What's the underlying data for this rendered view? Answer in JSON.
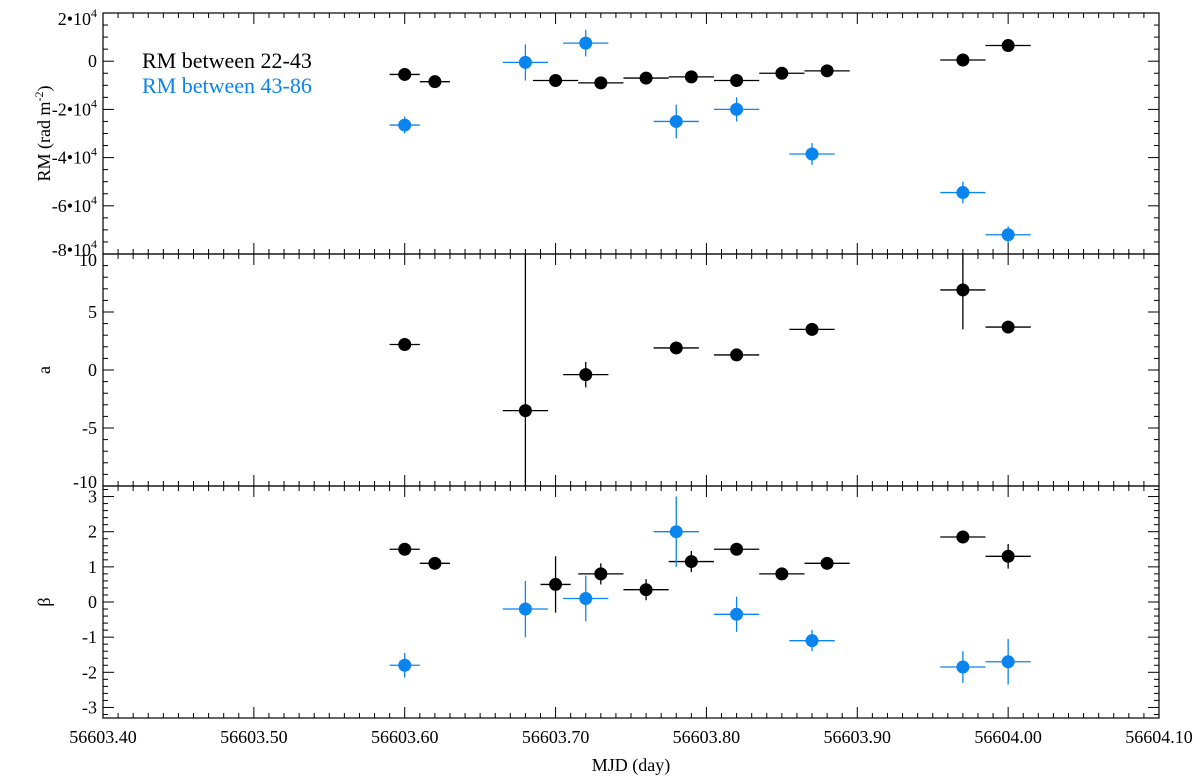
{
  "chart_data": {
    "type": "scatter",
    "layout": "three vertically stacked panels sharing the x axis",
    "xlabel": "MJD (day)",
    "xlim": [
      56603.4,
      56604.1
    ],
    "xticks": [
      "56603.40",
      "56603.50",
      "56603.60",
      "56603.70",
      "56603.80",
      "56603.90",
      "56604.00",
      "56604.10"
    ],
    "legend": {
      "position": "top-left",
      "entries": [
        {
          "label": "RM between 22-43",
          "color": "#000000"
        },
        {
          "label": "RM between 43-86",
          "color": "#0a84ee"
        }
      ]
    },
    "panels": [
      {
        "id": "rm",
        "ylabel": "RM (rad m",
        "ylabel_sup": "-2",
        "ylabel_close": ")",
        "ylim": [
          -80000,
          20000
        ],
        "yticks": [
          {
            "v": 20000,
            "m": "2•10",
            "e": "4"
          },
          {
            "v": 0,
            "m": "0",
            "e": ""
          },
          {
            "v": -20000,
            "m": "-2•10",
            "e": "4"
          },
          {
            "v": -40000,
            "m": "-4•10",
            "e": "4"
          },
          {
            "v": -60000,
            "m": "-6•10",
            "e": "4"
          },
          {
            "v": -80000,
            "m": "-8•10",
            "e": "4"
          }
        ],
        "series": [
          {
            "name": "RM between 22-43",
            "color": "#000000",
            "points": [
              {
                "x": 56603.6,
                "y": -5500,
                "xerr": 0.01,
                "yerr": 1500
              },
              {
                "x": 56603.62,
                "y": -8500,
                "xerr": 0.01,
                "yerr": 1500
              },
              {
                "x": 56603.7,
                "y": -8000,
                "xerr": 0.015,
                "yerr": 1500
              },
              {
                "x": 56603.73,
                "y": -9000,
                "xerr": 0.015,
                "yerr": 1500
              },
              {
                "x": 56603.76,
                "y": -7000,
                "xerr": 0.015,
                "yerr": 1500
              },
              {
                "x": 56603.79,
                "y": -6500,
                "xerr": 0.015,
                "yerr": 1500
              },
              {
                "x": 56603.82,
                "y": -8000,
                "xerr": 0.015,
                "yerr": 1500
              },
              {
                "x": 56603.85,
                "y": -5000,
                "xerr": 0.015,
                "yerr": 1500
              },
              {
                "x": 56603.88,
                "y": -4000,
                "xerr": 0.015,
                "yerr": 1500
              },
              {
                "x": 56603.97,
                "y": 500,
                "xerr": 0.015,
                "yerr": 1500
              },
              {
                "x": 56604.0,
                "y": 6500,
                "xerr": 0.015,
                "yerr": 1500
              }
            ]
          },
          {
            "name": "RM between 43-86",
            "color": "#0a84ee",
            "points": [
              {
                "x": 56603.6,
                "y": -26500,
                "xerr": 0.01,
                "yerr": 3500
              },
              {
                "x": 56603.68,
                "y": -500,
                "xerr": 0.015,
                "yerr": 7500
              },
              {
                "x": 56603.72,
                "y": 7500,
                "xerr": 0.015,
                "yerr": 5500
              },
              {
                "x": 56603.78,
                "y": -25000,
                "xerr": 0.015,
                "yerr": 7000
              },
              {
                "x": 56603.82,
                "y": -20000,
                "xerr": 0.015,
                "yerr": 5000
              },
              {
                "x": 56603.87,
                "y": -38500,
                "xerr": 0.015,
                "yerr": 4500
              },
              {
                "x": 56603.97,
                "y": -54500,
                "xerr": 0.015,
                "yerr": 4500
              },
              {
                "x": 56604.0,
                "y": -72000,
                "xerr": 0.015,
                "yerr": 3500
              }
            ]
          }
        ]
      },
      {
        "id": "alpha",
        "ylabel": "a",
        "ylim": [
          -10,
          10
        ],
        "yticks": [
          {
            "v": 10,
            "m": "10",
            "e": ""
          },
          {
            "v": 5,
            "m": "5",
            "e": ""
          },
          {
            "v": 0,
            "m": "0",
            "e": ""
          },
          {
            "v": -5,
            "m": "-5",
            "e": ""
          },
          {
            "v": -10,
            "m": "-10",
            "e": ""
          }
        ],
        "series": [
          {
            "name": "RM between 22-43",
            "color": "#000000",
            "points": [
              {
                "x": 56603.6,
                "y": 2.2,
                "xerr": 0.01,
                "yerr": 0.3
              },
              {
                "x": 56603.68,
                "y": -3.5,
                "xerr": 0.015,
                "yerr": 13.5
              },
              {
                "x": 56603.72,
                "y": -0.4,
                "xerr": 0.015,
                "yerr": 1.1
              },
              {
                "x": 56603.78,
                "y": 1.9,
                "xerr": 0.015,
                "yerr": 0.3
              },
              {
                "x": 56603.82,
                "y": 1.3,
                "xerr": 0.015,
                "yerr": 0.3
              },
              {
                "x": 56603.87,
                "y": 3.5,
                "xerr": 0.015,
                "yerr": 0.3
              },
              {
                "x": 56603.97,
                "y": 6.9,
                "xerr": 0.015,
                "yerr": 3.4
              },
              {
                "x": 56604.0,
                "y": 3.7,
                "xerr": 0.015,
                "yerr": 0.3
              }
            ]
          }
        ]
      },
      {
        "id": "beta",
        "ylabel": "β",
        "ylim": [
          -3.3,
          3.3
        ],
        "yticks": [
          {
            "v": 3,
            "m": "3",
            "e": ""
          },
          {
            "v": 2,
            "m": "2",
            "e": ""
          },
          {
            "v": 1,
            "m": "1",
            "e": ""
          },
          {
            "v": 0,
            "m": "0",
            "e": ""
          },
          {
            "v": -1,
            "m": "-1",
            "e": ""
          },
          {
            "v": -2,
            "m": "-2",
            "e": ""
          },
          {
            "v": -3,
            "m": "-3",
            "e": ""
          }
        ],
        "series": [
          {
            "name": "RM between 22-43",
            "color": "#000000",
            "points": [
              {
                "x": 56603.6,
                "y": 1.5,
                "xerr": 0.01,
                "yerr": 0.1
              },
              {
                "x": 56603.62,
                "y": 1.1,
                "xerr": 0.01,
                "yerr": 0.1
              },
              {
                "x": 56603.7,
                "y": 0.5,
                "xerr": 0.01,
                "yerr": 0.8
              },
              {
                "x": 56603.73,
                "y": 0.8,
                "xerr": 0.015,
                "yerr": 0.3
              },
              {
                "x": 56603.76,
                "y": 0.35,
                "xerr": 0.015,
                "yerr": 0.3
              },
              {
                "x": 56603.79,
                "y": 1.15,
                "xerr": 0.015,
                "yerr": 0.3
              },
              {
                "x": 56603.82,
                "y": 1.5,
                "xerr": 0.015,
                "yerr": 0.1
              },
              {
                "x": 56603.85,
                "y": 0.8,
                "xerr": 0.015,
                "yerr": 0.1
              },
              {
                "x": 56603.88,
                "y": 1.1,
                "xerr": 0.015,
                "yerr": 0.1
              },
              {
                "x": 56603.97,
                "y": 1.85,
                "xerr": 0.015,
                "yerr": 0.1
              },
              {
                "x": 56604.0,
                "y": 1.3,
                "xerr": 0.015,
                "yerr": 0.35
              }
            ]
          },
          {
            "name": "RM between 43-86",
            "color": "#0a84ee",
            "points": [
              {
                "x": 56603.6,
                "y": -1.8,
                "xerr": 0.01,
                "yerr": 0.35
              },
              {
                "x": 56603.68,
                "y": -0.2,
                "xerr": 0.015,
                "yerr": 0.8
              },
              {
                "x": 56603.72,
                "y": 0.1,
                "xerr": 0.015,
                "yerr": 0.65
              },
              {
                "x": 56603.78,
                "y": 2.0,
                "xerr": 0.015,
                "yerr": 1.0
              },
              {
                "x": 56603.82,
                "y": -0.35,
                "xerr": 0.015,
                "yerr": 0.5
              },
              {
                "x": 56603.87,
                "y": -1.1,
                "xerr": 0.015,
                "yerr": 0.3
              },
              {
                "x": 56603.97,
                "y": -1.85,
                "xerr": 0.015,
                "yerr": 0.45
              },
              {
                "x": 56604.0,
                "y": -1.7,
                "xerr": 0.015,
                "yerr": 0.65
              }
            ]
          }
        ]
      }
    ]
  }
}
